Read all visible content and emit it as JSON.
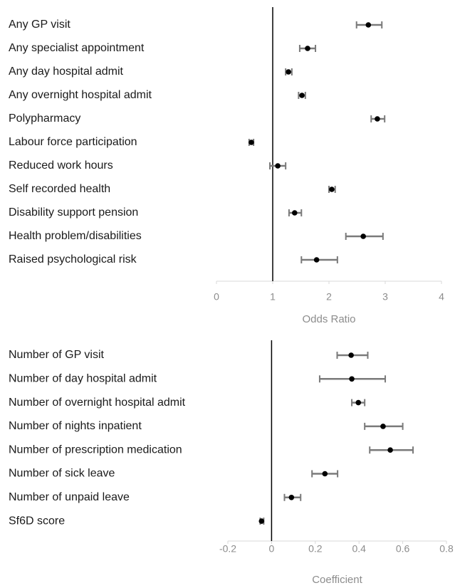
{
  "chart_data": [
    {
      "type": "forest",
      "x_label": "Odds Ratio",
      "categories": [
        "Any GP visit",
        "Any specialist appointment",
        "Any day hospital admit",
        "Any overnight hospital admit",
        "Polypharmacy",
        "Labour force participation",
        "Reduced work hours",
        "Self recorded health",
        "Disability support pension",
        "Health problem/disabilities",
        "Raised psychological risk"
      ],
      "values": [
        2.7,
        1.62,
        1.28,
        1.52,
        2.86,
        0.62,
        1.09,
        2.05,
        1.39,
        2.61,
        1.78
      ],
      "lower": [
        2.49,
        1.48,
        1.23,
        1.46,
        2.75,
        0.58,
        0.95,
        2.0,
        1.29,
        2.3,
        1.51
      ],
      "upper": [
        2.94,
        1.76,
        1.34,
        1.58,
        2.99,
        0.66,
        1.23,
        2.11,
        1.51,
        2.96,
        2.15
      ],
      "reference": 1,
      "xlim": [
        0,
        4
      ],
      "xticks": [
        0,
        1,
        2,
        3,
        4
      ],
      "color": "#000000",
      "error_color": "#7a7a7a"
    },
    {
      "type": "forest",
      "x_label": "Coefficient",
      "categories": [
        "Number of GP visit",
        "Number of day hospital admit",
        "Number of overnight hospital admit",
        "Number of nights inpatient",
        "Number of prescription medication",
        "Number of sick leave",
        "Number of unpaid leave",
        "Sf6D score"
      ],
      "values": [
        0.364,
        0.367,
        0.397,
        0.51,
        0.543,
        0.244,
        0.091,
        -0.046
      ],
      "lower": [
        0.3,
        0.22,
        0.367,
        0.426,
        0.449,
        0.185,
        0.059,
        -0.052
      ],
      "upper": [
        0.44,
        0.52,
        0.426,
        0.6,
        0.647,
        0.302,
        0.133,
        -0.036
      ],
      "reference": 0,
      "xlim": [
        -0.2,
        0.8
      ],
      "xticks": [
        -0.2,
        0,
        0.2,
        0.4,
        0.6,
        0.8
      ],
      "color": "#000000",
      "error_color": "#7a7a7a"
    }
  ]
}
